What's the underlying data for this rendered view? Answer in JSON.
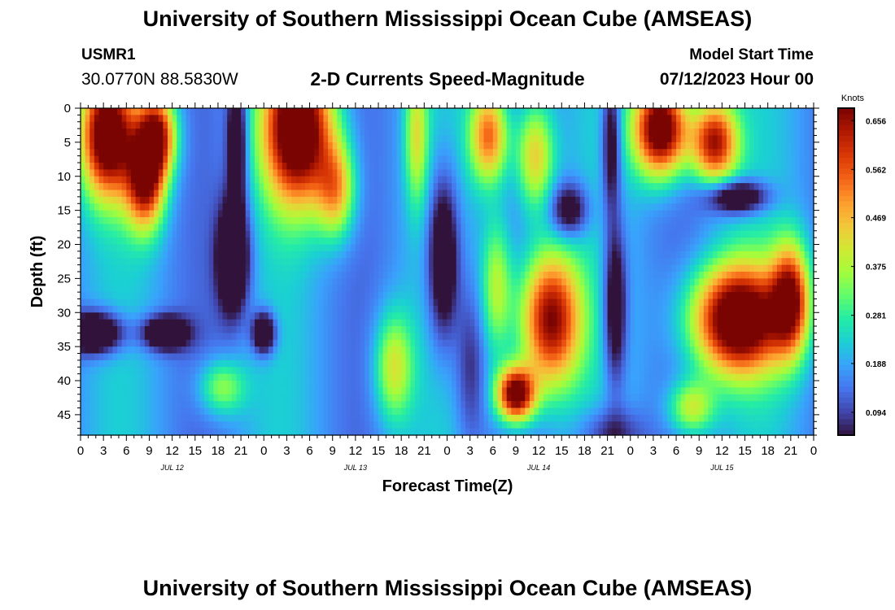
{
  "header": {
    "title": "University of Southern Mississippi Ocean Cube (AMSEAS)",
    "station_id": "USMR1",
    "station_coords": "30.0770N  88.5830W",
    "subtitle": "2-D Currents Speed-Magnitude",
    "model_start_label": "Model Start Time",
    "model_start_value": "07/12/2023 Hour 00"
  },
  "footer": {
    "title": "University of Southern Mississippi Ocean Cube (AMSEAS)"
  },
  "chart_data": {
    "type": "heatmap",
    "title": "2-D Currents Speed-Magnitude",
    "xlabel": "Forecast Time(Z)",
    "ylabel": "Depth (ft)",
    "x_tick_labels": [
      "0",
      "3",
      "6",
      "9",
      "12",
      "15",
      "18",
      "21",
      "0",
      "3",
      "6",
      "9",
      "12",
      "15",
      "18",
      "21",
      "0",
      "3",
      "6",
      "9",
      "12",
      "15",
      "18",
      "21",
      "0",
      "3",
      "6",
      "9",
      "12",
      "15",
      "18",
      "21",
      "0"
    ],
    "x_day_labels": [
      "JUL 12",
      "JUL 13",
      "JUL 14",
      "JUL 15"
    ],
    "xlim_hours": [
      0,
      96
    ],
    "y_tick_labels": [
      "0",
      "5",
      "10",
      "15",
      "20",
      "25",
      "30",
      "35",
      "40",
      "45"
    ],
    "ylim_ft": [
      0,
      48
    ],
    "colorbar": {
      "unit": "Knots",
      "ticks": [
        "0.656",
        "0.562",
        "0.469",
        "0.375",
        "0.281",
        "0.188",
        "0.094"
      ],
      "min": 0.05,
      "max": 0.68
    },
    "features": [
      {
        "t": 3.5,
        "d": 4,
        "tw": 3.5,
        "dw": 9,
        "v": 0.58
      },
      {
        "t": 8.5,
        "d": 11,
        "tw": 2.5,
        "dw": 7,
        "v": 0.45
      },
      {
        "t": 10,
        "d": 4,
        "tw": 2.5,
        "dw": 6,
        "v": 0.48
      },
      {
        "t": 2,
        "d": 33,
        "tw": 3.5,
        "dw": 3,
        "v": -0.32
      },
      {
        "t": 11,
        "d": 33,
        "tw": 3,
        "dw": 2.5,
        "v": -0.28
      },
      {
        "t": 20,
        "d": 22,
        "tw": 2,
        "dw": 8,
        "v": -0.32
      },
      {
        "t": 24,
        "d": 33,
        "tw": 1.5,
        "dw": 3,
        "v": -0.3
      },
      {
        "t": 20.5,
        "d": 5,
        "tw": 1.2,
        "dw": 10,
        "v": -0.25
      },
      {
        "t": 18.5,
        "d": 41,
        "tw": 3,
        "dw": 4,
        "v": 0.2
      },
      {
        "t": 28.5,
        "d": 3,
        "tw": 4.5,
        "dw": 11,
        "v": 0.62
      },
      {
        "t": 33.5,
        "d": 12,
        "tw": 2.5,
        "dw": 7,
        "v": 0.3
      },
      {
        "t": 41,
        "d": 38,
        "tw": 2.5,
        "dw": 8,
        "v": 0.25
      },
      {
        "t": 44,
        "d": 4,
        "tw": 1.5,
        "dw": 10,
        "v": 0.22
      },
      {
        "t": 47.5,
        "d": 22,
        "tw": 2,
        "dw": 12,
        "v": -0.28
      },
      {
        "t": 51,
        "d": 38,
        "tw": 2,
        "dw": 12,
        "v": -0.12
      },
      {
        "t": 53.5,
        "d": 4,
        "tw": 2.5,
        "dw": 7,
        "v": 0.38
      },
      {
        "t": 59.5,
        "d": 7,
        "tw": 2.5,
        "dw": 8,
        "v": 0.3
      },
      {
        "t": 54.5,
        "d": 26,
        "tw": 2,
        "dw": 10,
        "v": 0.22
      },
      {
        "t": 57,
        "d": 42,
        "tw": 2.5,
        "dw": 4,
        "v": 0.58
      },
      {
        "t": 61.5,
        "d": 31,
        "tw": 4,
        "dw": 10,
        "v": 0.52
      },
      {
        "t": 64,
        "d": 15,
        "tw": 2.5,
        "dw": 4,
        "v": -0.22
      },
      {
        "t": 69.5,
        "d": 5,
        "tw": 1.2,
        "dw": 10,
        "v": -0.22
      },
      {
        "t": 70,
        "d": 29,
        "tw": 1.5,
        "dw": 12,
        "v": -0.24
      },
      {
        "t": 69.5,
        "d": 48,
        "tw": 4,
        "dw": 4,
        "v": -0.15
      },
      {
        "t": 76,
        "d": 3,
        "tw": 3.5,
        "dw": 7,
        "v": 0.62
      },
      {
        "t": 83,
        "d": 5,
        "tw": 3,
        "dw": 6,
        "v": 0.48
      },
      {
        "t": 86,
        "d": 13,
        "tw": 4,
        "dw": 2.5,
        "v": -0.28
      },
      {
        "t": 86,
        "d": 31,
        "tw": 6,
        "dw": 8,
        "v": 0.62
      },
      {
        "t": 80,
        "d": 44,
        "tw": 3,
        "dw": 4,
        "v": 0.25
      },
      {
        "t": 93,
        "d": 28,
        "tw": 2.5,
        "dw": 8,
        "v": 0.45
      }
    ]
  }
}
